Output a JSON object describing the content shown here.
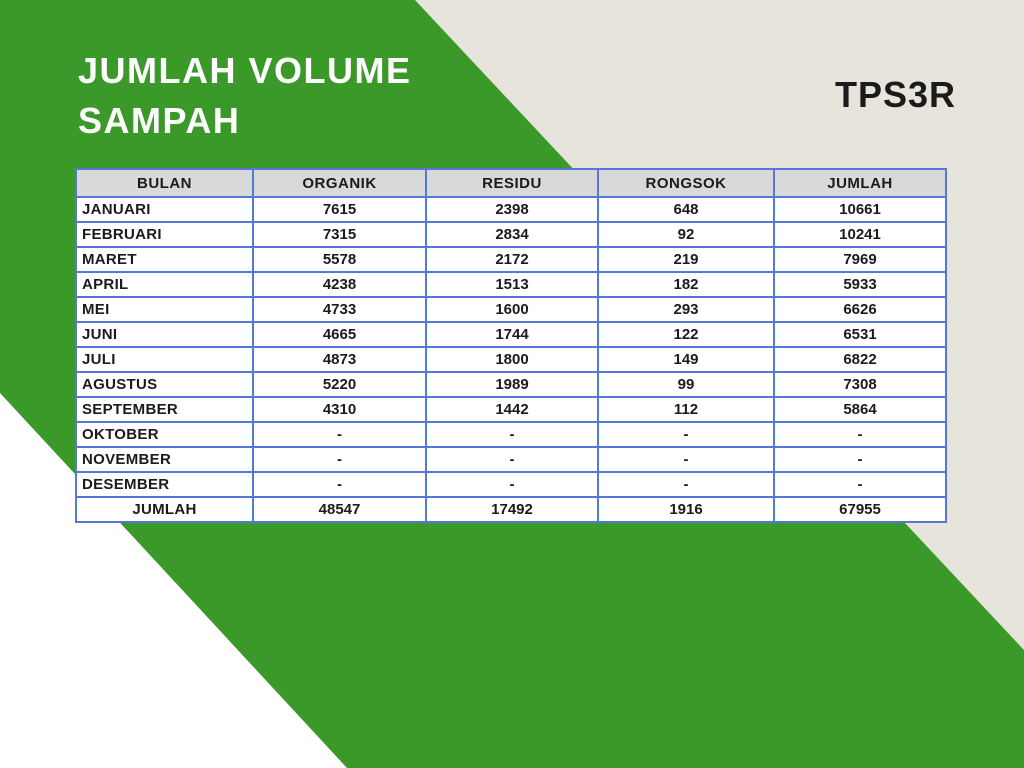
{
  "title": {
    "line1": "JUMLAH VOLUME",
    "line2": "SAMPAH"
  },
  "corner_label": "TPS3R",
  "colors": {
    "green": "#3b992a",
    "cream": "#e7e4db",
    "white": "#ffffff",
    "table_border": "#5577d8",
    "header_bg": "#d9d9d9",
    "title_color": "#ffffff",
    "text_dark": "#1b1b1b"
  },
  "chart_data": {
    "type": "table",
    "title": "JUMLAH VOLUME SAMPAH",
    "columns": [
      "BULAN",
      "ORGANIK",
      "RESIDU",
      "RONGSOK",
      "JUMLAH"
    ],
    "rows": [
      [
        "JANUARI",
        "7615",
        "2398",
        "648",
        "10661"
      ],
      [
        "FEBRUARI",
        "7315",
        "2834",
        "92",
        "10241"
      ],
      [
        "MARET",
        "5578",
        "2172",
        "219",
        "7969"
      ],
      [
        "APRIL",
        "4238",
        "1513",
        "182",
        "5933"
      ],
      [
        "MEI",
        "4733",
        "1600",
        "293",
        "6626"
      ],
      [
        "JUNI",
        "4665",
        "1744",
        "122",
        "6531"
      ],
      [
        "JULI",
        "4873",
        "1800",
        "149",
        "6822"
      ],
      [
        "AGUSTUS",
        "5220",
        "1989",
        "99",
        "7308"
      ],
      [
        "SEPTEMBER",
        "4310",
        "1442",
        "112",
        "5864"
      ],
      [
        "OKTOBER",
        "-",
        "-",
        "-",
        "-"
      ],
      [
        "NOVEMBER",
        "-",
        "-",
        "-",
        "-"
      ],
      [
        "DESEMBER",
        "-",
        "-",
        "-",
        "-"
      ]
    ],
    "total_row": [
      "JUMLAH",
      "48547",
      "17492",
      "1916",
      "67955"
    ]
  }
}
